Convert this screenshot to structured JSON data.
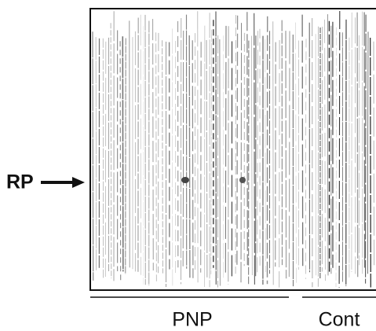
{
  "figure": {
    "arrow_label": "RP",
    "groups": [
      {
        "label": "PNP"
      },
      {
        "label": "Cont"
      }
    ]
  }
}
